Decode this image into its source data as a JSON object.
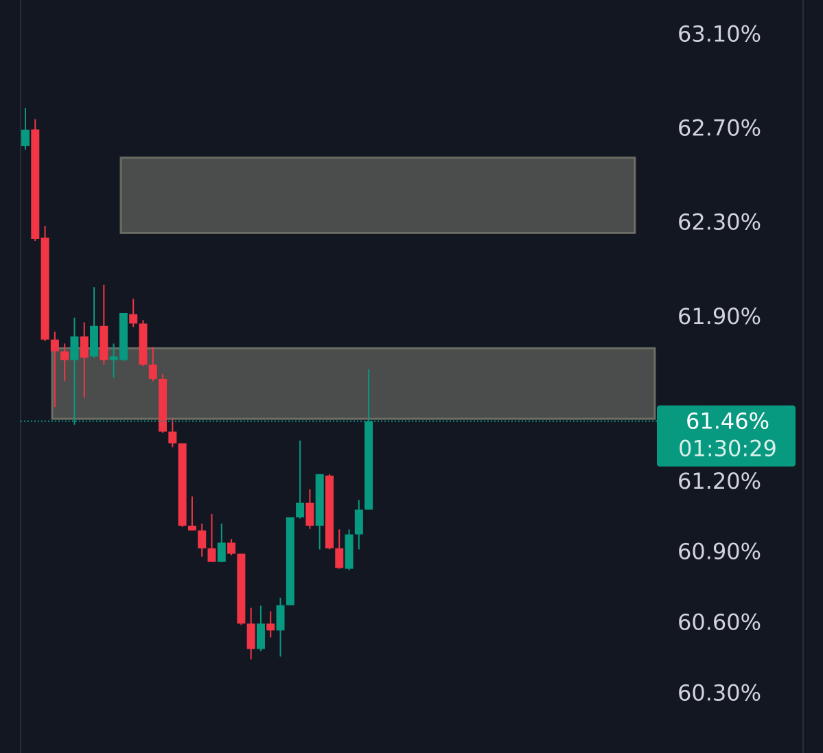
{
  "chart_data": {
    "type": "candlestick",
    "up_color": "#089981",
    "down_color": "#f23645",
    "open": [
      62.629,
      62.7,
      62.24,
      61.807,
      61.757,
      61.72,
      61.82,
      61.735,
      61.865,
      61.72,
      61.72,
      61.915,
      61.875,
      61.7,
      61.64,
      61.416,
      61.366,
      61.016,
      60.996,
      60.92,
      60.862,
      60.944,
      60.897,
      60.6,
      60.492,
      60.6,
      60.571,
      60.678,
      61.052,
      61.113,
      61.016,
      61.229,
      60.92,
      60.833,
      60.979,
      61.084
    ],
    "high": [
      62.792,
      62.744,
      62.29,
      61.84,
      61.79,
      61.9,
      61.88,
      62.03,
      62.04,
      61.79,
      61.92,
      61.98,
      61.89,
      61.775,
      61.66,
      61.47,
      61.366,
      61.14,
      61.025,
      61.065,
      61.025,
      60.96,
      60.897,
      60.667,
      60.676,
      60.652,
      60.71,
      61.052,
      61.378,
      61.171,
      61.235,
      61.235,
      61.0,
      61.0,
      61.125,
      61.68
    ],
    "low": [
      62.614,
      62.226,
      61.8,
      61.52,
      61.63,
      61.445,
      61.56,
      61.73,
      61.7,
      61.645,
      61.715,
      61.86,
      61.695,
      61.63,
      61.41,
      61.35,
      61.01,
      60.996,
      60.885,
      60.862,
      60.862,
      60.89,
      60.594,
      60.448,
      60.483,
      60.541,
      60.46,
      60.678,
      61.046,
      61.002,
      60.915,
      60.915,
      60.833,
      60.827,
      60.915,
      61.084
    ],
    "close": [
      62.699,
      62.235,
      61.807,
      61.757,
      61.72,
      61.82,
      61.73,
      61.865,
      61.72,
      61.735,
      61.92,
      61.875,
      61.7,
      61.64,
      61.416,
      61.366,
      61.016,
      60.996,
      60.92,
      60.862,
      60.944,
      60.897,
      60.6,
      60.492,
      60.6,
      60.571,
      60.678,
      61.052,
      61.113,
      61.016,
      61.235,
      60.92,
      60.836,
      60.979,
      61.084,
      61.46
    ],
    "zones": [
      {
        "low": 62.26,
        "high": 62.58
      },
      {
        "low": 61.47,
        "high": 61.77
      }
    ],
    "ylim": [
      60.05,
      63.25
    ],
    "yticks": [
      {
        "value": 63.1,
        "label": "63.10%"
      },
      {
        "value": 62.7,
        "label": "62.70%"
      },
      {
        "value": 62.3,
        "label": "62.30%"
      },
      {
        "value": 61.9,
        "label": "61.90%"
      },
      {
        "value": 61.2,
        "label": "61.20%"
      },
      {
        "value": 60.9,
        "label": "60.90%"
      },
      {
        "value": 60.6,
        "label": "60.60%"
      },
      {
        "value": 60.3,
        "label": "60.30%"
      }
    ],
    "last_price": {
      "value": 61.46,
      "label": "61.46%"
    },
    "countdown": "01:30:29"
  }
}
